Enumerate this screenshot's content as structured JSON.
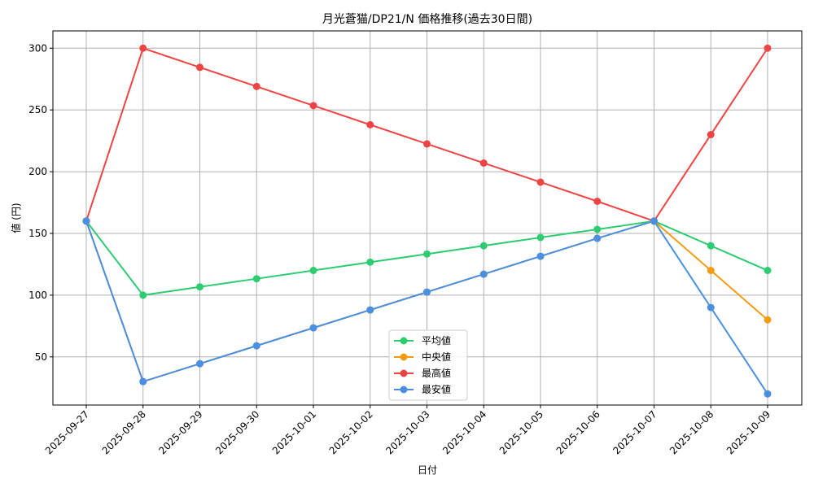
{
  "chart_data": {
    "type": "line",
    "title": "月光蒼猫/DP21/N 価格推移(過去30日間)",
    "xlabel": "日付",
    "ylabel": "値 (円)",
    "categories": [
      "2025-09-27",
      "2025-09-28",
      "2025-09-29",
      "2025-09-30",
      "2025-10-01",
      "2025-10-02",
      "2025-10-03",
      "2025-10-04",
      "2025-10-05",
      "2025-10-06",
      "2025-10-07",
      "2025-10-08",
      "2025-10-09"
    ],
    "ylim": [
      11,
      314
    ],
    "yticks": [
      50,
      100,
      150,
      200,
      250,
      300
    ],
    "grid": true,
    "legend_position": "lower center",
    "series": [
      {
        "name": "平均値",
        "color": "#2ecc71",
        "values": [
          160,
          100,
          106.7,
          113.3,
          120,
          126.7,
          133.3,
          140,
          146.7,
          153.3,
          160,
          140,
          120
        ]
      },
      {
        "name": "中央値",
        "color": "#f39c12",
        "values": [
          160,
          30,
          44.5,
          59,
          73.5,
          88,
          102.5,
          117,
          131.5,
          146,
          160,
          120,
          80
        ]
      },
      {
        "name": "最高値",
        "color": "#ef4444",
        "values": [
          160,
          300,
          284.5,
          269,
          253.5,
          238,
          222.5,
          207,
          191.5,
          176,
          160,
          230,
          300
        ]
      },
      {
        "name": "最安値",
        "color": "#4a90e2",
        "values": [
          160,
          30,
          44.5,
          59,
          73.5,
          88,
          102.5,
          117,
          131.5,
          146,
          160,
          90,
          20
        ]
      }
    ]
  }
}
